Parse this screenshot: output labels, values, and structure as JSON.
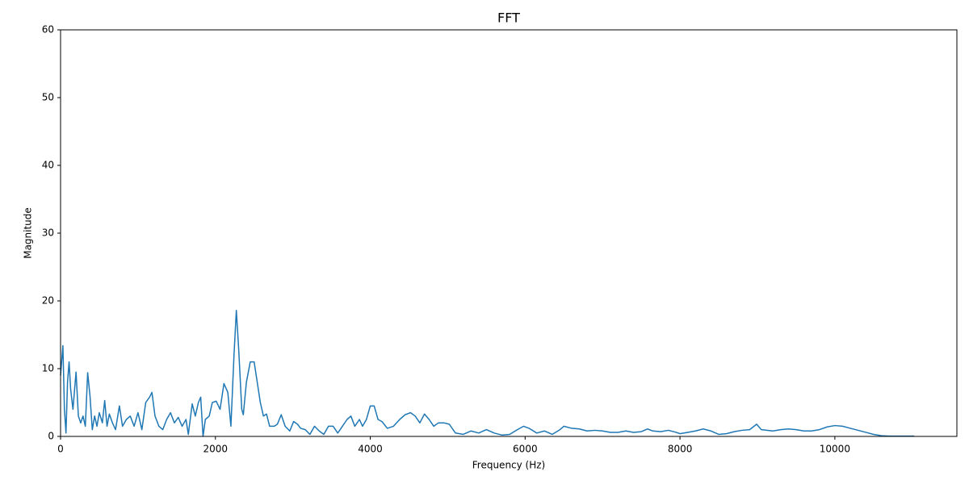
{
  "chart_data": {
    "type": "line",
    "title": "FFT",
    "x_label": "Frequency (Hz)",
    "y_label": "Magnitude",
    "x": [
      0,
      30,
      50,
      70,
      90,
      110,
      130,
      160,
      200,
      230,
      260,
      290,
      320,
      350,
      380,
      410,
      440,
      470,
      500,
      540,
      570,
      600,
      630,
      670,
      710,
      760,
      800,
      850,
      900,
      950,
      1000,
      1050,
      1100,
      1150,
      1180,
      1220,
      1270,
      1320,
      1370,
      1420,
      1470,
      1520,
      1570,
      1620,
      1650,
      1700,
      1740,
      1780,
      1810,
      1840,
      1870,
      1920,
      1960,
      2010,
      2060,
      2110,
      2160,
      2200,
      2240,
      2270,
      2300,
      2340,
      2360,
      2400,
      2450,
      2500,
      2540,
      2580,
      2620,
      2660,
      2700,
      2760,
      2800,
      2850,
      2900,
      2960,
      3010,
      3060,
      3100,
      3160,
      3220,
      3280,
      3340,
      3400,
      3460,
      3520,
      3580,
      3640,
      3700,
      3750,
      3800,
      3860,
      3900,
      3950,
      4000,
      4050,
      4100,
      4150,
      4220,
      4300,
      4380,
      4450,
      4520,
      4580,
      4640,
      4700,
      4760,
      4820,
      4880,
      4950,
      5020,
      5100,
      5200,
      5300,
      5400,
      5500,
      5600,
      5700,
      5800,
      5900,
      5980,
      6050,
      6150,
      6250,
      6350,
      6450,
      6500,
      6600,
      6700,
      6800,
      6900,
      7000,
      7100,
      7200,
      7300,
      7400,
      7500,
      7580,
      7650,
      7750,
      7850,
      7950,
      8000,
      8100,
      8200,
      8300,
      8400,
      8500,
      8600,
      8700,
      8800,
      8900,
      8990,
      9050,
      9200,
      9300,
      9400,
      9500,
      9600,
      9700,
      9800,
      9900,
      10000,
      10100,
      10200,
      10300,
      10400,
      10500,
      10600,
      10700,
      10800,
      10900,
      11025
    ],
    "series": [
      {
        "color": "#1f77b4",
        "values": [
          9,
          13.4,
          4,
          0.5,
          8,
          11,
          7,
          4,
          9.5,
          3,
          2,
          3,
          1.5,
          9.4,
          6,
          1,
          3,
          1.5,
          3.5,
          2,
          5.3,
          1.5,
          3.3,
          2,
          1,
          4.5,
          1.5,
          2.5,
          3,
          1.5,
          3.5,
          1,
          5,
          5.8,
          6.5,
          3,
          1.5,
          1,
          2.5,
          3.5,
          2,
          2.8,
          1.5,
          2.5,
          0.3,
          4.8,
          3,
          5,
          5.8,
          0,
          2.5,
          3,
          5,
          5.2,
          4,
          7.8,
          6.5,
          1.5,
          12,
          18.6,
          13,
          4,
          3.2,
          8,
          11,
          11,
          8,
          5,
          3,
          3.3,
          1.5,
          1.5,
          1.8,
          3.2,
          1.5,
          0.8,
          2.2,
          1.8,
          1.2,
          1,
          0.3,
          1.5,
          0.8,
          0.3,
          1.5,
          1.5,
          0.5,
          1.5,
          2.5,
          3,
          1.5,
          2.5,
          1.5,
          2.5,
          4.5,
          4.5,
          2.5,
          2.2,
          1.2,
          1.5,
          2.5,
          3.2,
          3.5,
          3,
          2,
          3.3,
          2.5,
          1.5,
          2,
          2,
          1.8,
          0.5,
          0.3,
          0.8,
          0.5,
          1,
          0.5,
          0.2,
          0.3,
          1,
          1.5,
          1.2,
          0.5,
          0.8,
          0.3,
          1,
          1.5,
          1.2,
          1.1,
          0.8,
          0.9,
          0.8,
          0.6,
          0.6,
          0.8,
          0.6,
          0.7,
          1.1,
          0.8,
          0.7,
          0.9,
          0.6,
          0.4,
          0.6,
          0.8,
          1.1,
          0.8,
          0.3,
          0.4,
          0.7,
          0.9,
          1,
          1.8,
          1,
          0.8,
          1,
          1.1,
          1,
          0.8,
          0.8,
          1,
          1.4,
          1.6,
          1.5,
          1.2,
          0.9,
          0.6,
          0.3,
          0.1,
          0.05,
          0.05,
          0.05,
          0.05
        ]
      }
    ],
    "xlim": [
      0,
      11576
    ],
    "ylim": [
      0,
      60
    ],
    "xticks": [
      0,
      2000,
      4000,
      6000,
      8000,
      10000
    ],
    "yticks": [
      0,
      10,
      20,
      30,
      40,
      50,
      60
    ],
    "grid": false
  }
}
